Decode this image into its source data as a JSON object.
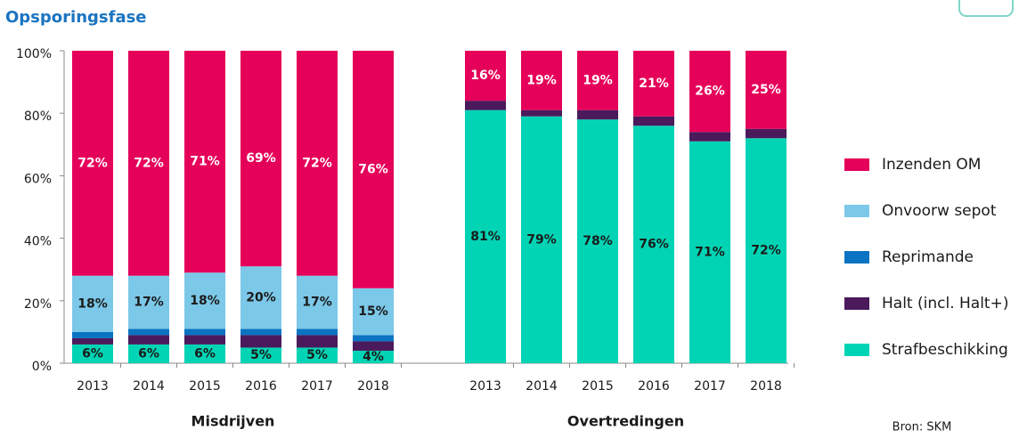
{
  "chart_data": {
    "type": "stacked_bar",
    "title": "Opsporingsfase",
    "source": "Bron: SKM",
    "groups": [
      {
        "label": "Misdrijven",
        "categories": [
          "2013",
          "2014",
          "2015",
          "2016",
          "2017",
          "2018"
        ]
      },
      {
        "label": "Overtredingen",
        "categories": [
          "2013",
          "2014",
          "2015",
          "2016",
          "2017",
          "2018"
        ]
      }
    ],
    "series": [
      {
        "name": "Inzenden OM",
        "color": "#e5005a",
        "label_color": "#ffffff",
        "values": [
          72,
          72,
          71,
          69,
          72,
          76,
          16,
          19,
          19,
          21,
          26,
          25
        ],
        "value_labels": [
          "72%",
          "72%",
          "71%",
          "69%",
          "72%",
          "76%",
          "16%",
          "19%",
          "19%",
          "21%",
          "26%",
          "25%"
        ]
      },
      {
        "name": "Onvoorw sepot",
        "color": "#7cc8e8",
        "label_color": "#1a1a1a",
        "values": [
          18,
          17,
          18,
          20,
          17,
          15,
          0,
          0,
          0,
          0,
          0,
          0
        ],
        "value_labels": [
          "18%",
          "17%",
          "18%",
          "20%",
          "17%",
          "15%",
          null,
          null,
          null,
          null,
          null,
          null
        ]
      },
      {
        "name": "Reprimande",
        "color": "#0a73c2",
        "label_color": "#ffffff",
        "values": [
          2,
          2,
          2,
          2,
          2,
          2,
          0,
          0,
          0,
          0,
          0,
          0
        ]
      },
      {
        "name": "Halt (incl. Halt+)",
        "color": "#4a1a5c",
        "label_color": "#ffffff",
        "values": [
          2,
          3,
          3,
          4,
          4,
          3,
          3,
          2,
          3,
          3,
          3,
          3
        ]
      },
      {
        "name": "Strafbeschikking",
        "color": "#00d4b4",
        "label_color": "#1a1a1a",
        "values": [
          6,
          6,
          6,
          5,
          5,
          4,
          81,
          79,
          78,
          76,
          71,
          72
        ],
        "value_labels": [
          "6%",
          "6%",
          "6%",
          "5%",
          "5%",
          "4%",
          "81%",
          "79%",
          "78%",
          "76%",
          "71%",
          "72%"
        ]
      }
    ],
    "ylim": [
      0,
      100
    ],
    "yticks": [
      {
        "value": 0,
        "label": "0%"
      },
      {
        "value": 20,
        "label": "20%"
      },
      {
        "value": 40,
        "label": "40%"
      },
      {
        "value": 60,
        "label": "60%"
      },
      {
        "value": 80,
        "label": "80%"
      },
      {
        "value": 100,
        "label": "100%"
      }
    ],
    "legend": "right"
  }
}
